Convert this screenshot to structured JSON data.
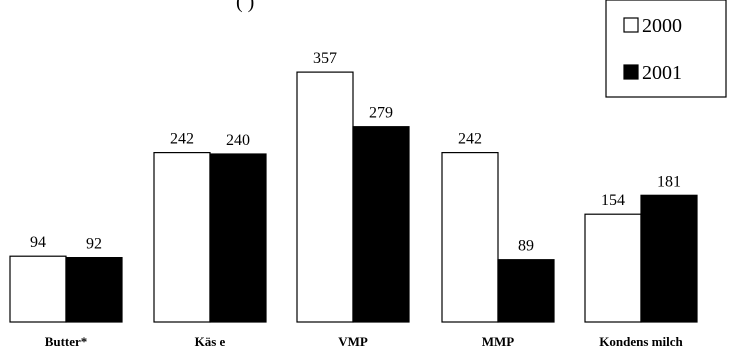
{
  "chart_data": {
    "type": "bar",
    "title_fragment": "(         )",
    "categories": [
      "Butter*",
      "Käs e",
      "VMP",
      "MMP",
      "Kondens milch"
    ],
    "series": [
      {
        "name": "2000",
        "values": [
          94,
          242,
          357,
          242,
          154
        ],
        "color": "#ffffff"
      },
      {
        "name": "2001",
        "values": [
          92,
          240,
          279,
          89,
          181
        ],
        "color": "#000000"
      }
    ],
    "data_labels": true,
    "legend_position": "top-right",
    "grid": false
  }
}
